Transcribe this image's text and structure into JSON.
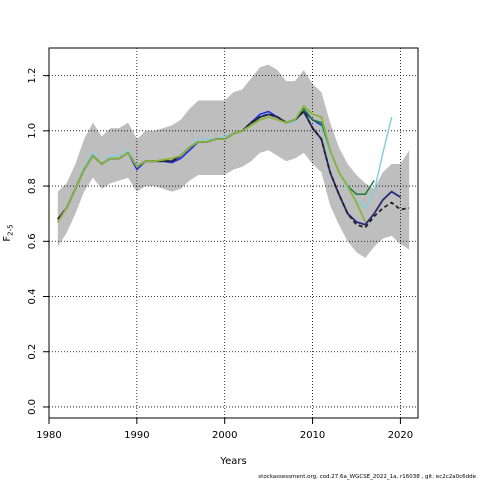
{
  "chart_data": {
    "type": "line",
    "title": "",
    "xlabel": "Years",
    "ylabel_main": "F",
    "ylabel_sub": "2-5",
    "xlim": [
      1980,
      2022
    ],
    "ylim": [
      -0.04,
      1.3
    ],
    "xticks": [
      1980,
      1990,
      2000,
      2010,
      2020
    ],
    "xtick_labels": [
      "1980",
      "1990",
      "2000",
      "2010",
      "2020"
    ],
    "yticks": [
      0.0,
      0.2,
      0.4,
      0.6,
      0.8,
      1.0,
      1.2
    ],
    "ytick_labels": [
      "0.0",
      "0.2",
      "0.4",
      "0.6",
      "0.8",
      "1.0",
      "1.2"
    ],
    "grid": true,
    "grid_style": "dotted",
    "band": {
      "color": "#bebebe",
      "x": [
        1981,
        1982,
        1983,
        1984,
        1985,
        1986,
        1987,
        1988,
        1989,
        1990,
        1991,
        1992,
        1993,
        1994,
        1995,
        1996,
        1997,
        1998,
        1999,
        2000,
        2001,
        2002,
        2003,
        2004,
        2005,
        2006,
        2007,
        2008,
        2009,
        2010,
        2011,
        2012,
        2013,
        2014,
        2015,
        2016,
        2017,
        2018,
        2019,
        2020,
        2021
      ],
      "upper": [
        0.78,
        0.81,
        0.88,
        0.97,
        1.03,
        0.98,
        1.01,
        1.01,
        1.03,
        0.97,
        1.0,
        1.0,
        1.01,
        1.02,
        1.04,
        1.08,
        1.11,
        1.11,
        1.11,
        1.11,
        1.14,
        1.15,
        1.19,
        1.23,
        1.24,
        1.22,
        1.18,
        1.18,
        1.22,
        1.17,
        1.14,
        1.03,
        0.94,
        0.88,
        0.84,
        0.81,
        0.79,
        0.85,
        0.88,
        0.88,
        0.93
      ],
      "lower": [
        0.58,
        0.63,
        0.7,
        0.78,
        0.83,
        0.79,
        0.81,
        0.82,
        0.83,
        0.78,
        0.8,
        0.8,
        0.79,
        0.78,
        0.79,
        0.82,
        0.84,
        0.84,
        0.84,
        0.84,
        0.86,
        0.87,
        0.89,
        0.92,
        0.93,
        0.91,
        0.89,
        0.9,
        0.92,
        0.88,
        0.85,
        0.73,
        0.66,
        0.6,
        0.56,
        0.54,
        0.58,
        0.61,
        0.62,
        0.59,
        0.57
      ]
    },
    "series": [
      {
        "color": "#87cede",
        "width": 1.5,
        "dash": "",
        "x": [
          1981,
          1982,
          1983,
          1984,
          1985,
          1986,
          1987,
          1988,
          1989,
          1990,
          1991,
          1992,
          1993,
          1994,
          1995,
          1996,
          1997,
          1998,
          1999,
          2000,
          2001,
          2002,
          2003,
          2004,
          2005,
          2006,
          2007,
          2008,
          2009,
          2010,
          2011,
          2012,
          2013,
          2014,
          2015,
          2016,
          2017,
          2018,
          2019
        ],
        "values": [
          0.68,
          0.72,
          0.79,
          0.87,
          0.92,
          0.88,
          0.91,
          0.91,
          0.93,
          0.87,
          0.89,
          0.89,
          0.89,
          0.89,
          0.91,
          0.94,
          0.97,
          0.97,
          0.97,
          0.98,
          0.99,
          1.0,
          1.03,
          1.06,
          1.06,
          1.05,
          1.03,
          1.03,
          1.08,
          1.04,
          1.02,
          0.92,
          0.85,
          0.79,
          0.75,
          0.72,
          0.78,
          0.92,
          1.05
        ]
      },
      {
        "color": "#1f2be0",
        "width": 1.5,
        "dash": "",
        "x": [
          1981,
          1982,
          1983,
          1984,
          1985,
          1986,
          1987,
          1988,
          1989,
          1990,
          1991,
          1992,
          1993,
          1994,
          1995,
          1996,
          1997,
          1998,
          1999,
          2000,
          2001,
          2002,
          2003,
          2004,
          2005,
          2006,
          2007,
          2008,
          2009,
          2010,
          2011
        ],
        "values": [
          0.68,
          0.72,
          0.79,
          0.86,
          0.91,
          0.88,
          0.9,
          0.9,
          0.92,
          0.86,
          0.89,
          0.89,
          0.89,
          0.885,
          0.9,
          0.93,
          0.96,
          0.96,
          0.97,
          0.97,
          0.99,
          1.0,
          1.03,
          1.06,
          1.07,
          1.05,
          1.03,
          1.04,
          1.07,
          1.04,
          1.02
        ]
      },
      {
        "color": "#1a7d3a",
        "width": 1.5,
        "dash": "",
        "x": [
          1981,
          1982,
          1983,
          1984,
          1985,
          1986,
          1987,
          1988,
          1989,
          1990,
          1991,
          1992,
          1993,
          1994,
          1995,
          1996,
          1997,
          1998,
          1999,
          2000,
          2001,
          2002,
          2003,
          2004,
          2005,
          2006,
          2007,
          2008,
          2009,
          2010,
          2011,
          2012,
          2013,
          2014,
          2015,
          2016,
          2017
        ],
        "values": [
          0.68,
          0.72,
          0.79,
          0.86,
          0.91,
          0.88,
          0.9,
          0.9,
          0.92,
          0.87,
          0.89,
          0.89,
          0.89,
          0.89,
          0.91,
          0.94,
          0.96,
          0.96,
          0.97,
          0.97,
          0.99,
          1.0,
          1.02,
          1.05,
          1.06,
          1.05,
          1.03,
          1.04,
          1.08,
          1.04,
          1.03,
          0.93,
          0.85,
          0.8,
          0.77,
          0.77,
          0.82
        ]
      },
      {
        "color": "#27277a",
        "width": 1.8,
        "dash": "",
        "x": [
          1981,
          1982,
          1983,
          1984,
          1985,
          1986,
          1987,
          1988,
          1989,
          1990,
          1991,
          1992,
          1993,
          1994,
          1995,
          1996,
          1997,
          1998,
          1999,
          2000,
          2001,
          2002,
          2003,
          2004,
          2005,
          2006,
          2007,
          2008,
          2009,
          2010,
          2011,
          2012,
          2013,
          2014,
          2015,
          2016,
          2017,
          2018,
          2019,
          2020
        ],
        "values": [
          0.68,
          0.72,
          0.79,
          0.86,
          0.91,
          0.88,
          0.9,
          0.9,
          0.92,
          0.87,
          0.89,
          0.89,
          0.89,
          0.89,
          0.91,
          0.94,
          0.96,
          0.96,
          0.97,
          0.97,
          0.99,
          1.0,
          1.03,
          1.05,
          1.06,
          1.05,
          1.03,
          1.04,
          1.07,
          1.01,
          0.97,
          0.85,
          0.77,
          0.7,
          0.67,
          0.66,
          0.7,
          0.75,
          0.78,
          0.76
        ]
      },
      {
        "color": "#222222",
        "width": 1.8,
        "dash": "4,3",
        "x": [
          1981,
          1982,
          1983,
          1984,
          1985,
          1986,
          1987,
          1988,
          1989,
          1990,
          1991,
          1992,
          1993,
          1994,
          1995,
          1996,
          1997,
          1998,
          1999,
          2000,
          2001,
          2002,
          2003,
          2004,
          2005,
          2006,
          2007,
          2008,
          2009,
          2010,
          2011,
          2012,
          2013,
          2014,
          2015,
          2016,
          2017,
          2018,
          2019,
          2020,
          2021
        ],
        "values": [
          0.68,
          0.72,
          0.79,
          0.86,
          0.91,
          0.88,
          0.9,
          0.9,
          0.92,
          0.87,
          0.89,
          0.89,
          0.89,
          0.89,
          0.91,
          0.94,
          0.96,
          0.96,
          0.97,
          0.97,
          0.99,
          1.0,
          1.03,
          1.05,
          1.06,
          1.05,
          1.03,
          1.04,
          1.07,
          1.01,
          0.97,
          0.85,
          0.77,
          0.7,
          0.66,
          0.65,
          0.69,
          0.72,
          0.74,
          0.715,
          0.72
        ]
      },
      {
        "color": "#8cb43c",
        "width": 1.8,
        "dash": "",
        "x": [
          1981,
          1982,
          1983,
          1984,
          1985,
          1986,
          1987,
          1988,
          1989,
          1990,
          1991,
          1992,
          1993,
          1994,
          1995,
          1996,
          1997,
          1998,
          1999,
          2000,
          2001,
          2002,
          2003,
          2004,
          2005,
          2006,
          2007,
          2008,
          2009,
          2010,
          2011,
          2012,
          2013,
          2014,
          2015,
          2016
        ],
        "values": [
          0.67,
          0.72,
          0.79,
          0.86,
          0.91,
          0.88,
          0.9,
          0.9,
          0.92,
          0.87,
          0.89,
          0.89,
          0.895,
          0.9,
          0.91,
          0.94,
          0.96,
          0.96,
          0.97,
          0.97,
          0.99,
          1.0,
          1.02,
          1.04,
          1.05,
          1.04,
          1.03,
          1.04,
          1.09,
          1.06,
          1.05,
          0.93,
          0.85,
          0.8,
          0.74,
          0.67
        ]
      }
    ]
  },
  "footer": {
    "text": "stockassessment.org, cod.27.6a_WGCSE_2022_1a, r16038 , git: ec2c2a0c6dde"
  }
}
